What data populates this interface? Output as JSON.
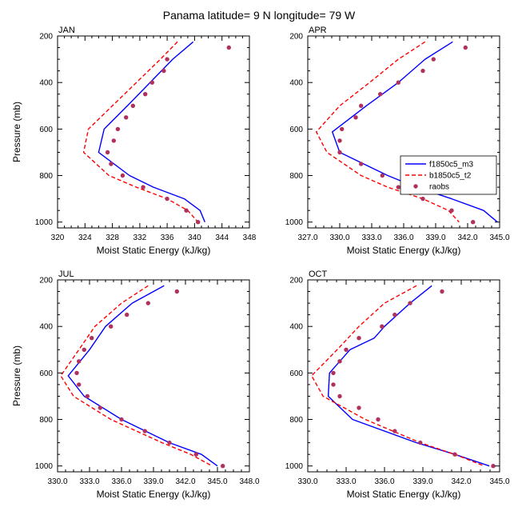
{
  "title": "Panama  latitude= 9 N longitude= 79 W",
  "colors": {
    "model": "#0000ff",
    "baseline": "#ff0000",
    "obs": "#b0305e"
  },
  "chart_data": [
    {
      "type": "line",
      "panel": "JAN",
      "xlabel": "Moist Static Energy (kJ/kg)",
      "ylabel": "Pressure (mb)",
      "xlim": [
        320,
        348
      ],
      "ylim": [
        200,
        1025
      ],
      "xticks": [
        320,
        324,
        328,
        332,
        336,
        340,
        344,
        348
      ],
      "xticklabels": [
        "320",
        "324",
        "328",
        "332",
        "336",
        "340",
        "344",
        "348"
      ],
      "yticks": [
        200,
        400,
        600,
        800,
        1000
      ],
      "yticklabels": [
        "200",
        "400",
        "600",
        "800",
        "1000"
      ],
      "series": [
        {
          "name": "f1850c5_m3",
          "style": "solid",
          "color": "#0000ff",
          "p": [
            225,
            300,
            400,
            500,
            600,
            700,
            800,
            850,
            900,
            950,
            1000
          ],
          "x": [
            339.8,
            336.8,
            333.5,
            330.2,
            326.8,
            326.0,
            330.5,
            334.0,
            338.5,
            340.8,
            341.5
          ]
        },
        {
          "name": "b1850c5_t2",
          "style": "dashed",
          "color": "#ff0000",
          "p": [
            225,
            300,
            400,
            500,
            600,
            700,
            800,
            850,
            900,
            950,
            1000
          ],
          "x": [
            337.5,
            335.0,
            331.5,
            328.0,
            324.5,
            323.8,
            327.5,
            331.5,
            336.0,
            339.0,
            340.5
          ]
        },
        {
          "name": "raobs",
          "style": "dots",
          "color": "#b0305e",
          "p": [
            250,
            300,
            350,
            400,
            450,
            500,
            550,
            600,
            650,
            700,
            750,
            800,
            850,
            900,
            950,
            1000
          ],
          "x": [
            345.0,
            336.0,
            335.5,
            333.8,
            332.8,
            331.0,
            330.0,
            328.8,
            328.2,
            327.3,
            327.8,
            329.5,
            332.5,
            336.0,
            338.8,
            340.5
          ]
        }
      ]
    },
    {
      "type": "line",
      "panel": "APR",
      "xlabel": "Moist Static Energy (kJ/kg)",
      "ylabel": "",
      "xlim": [
        327,
        345
      ],
      "ylim": [
        200,
        1025
      ],
      "xticks": [
        327,
        330,
        333,
        336,
        339,
        342,
        345
      ],
      "xticklabels": [
        "327.0",
        "330.0",
        "333.0",
        "336.0",
        "339.0",
        "342.0",
        "345.0"
      ],
      "yticks": [
        200,
        400,
        600,
        800,
        1000
      ],
      "yticklabels": [
        "200",
        "400",
        "600",
        "800",
        "1000"
      ],
      "legend": {
        "placement": "right",
        "entries": [
          "f1850c5_m3",
          "b1850c5_t2",
          "raobs"
        ]
      },
      "series": [
        {
          "name": "f1850c5_m3",
          "style": "solid",
          "color": "#0000ff",
          "p": [
            225,
            300,
            400,
            500,
            612,
            700,
            800,
            850,
            900,
            950,
            1000
          ],
          "x": [
            340.6,
            338.0,
            335.5,
            332.5,
            329.3,
            330.0,
            334.5,
            337.2,
            340.5,
            343.5,
            344.8
          ]
        },
        {
          "name": "b1850c5_t2",
          "style": "dashed",
          "color": "#ff0000",
          "p": [
            225,
            300,
            400,
            500,
            612,
            700,
            800,
            850,
            900,
            950,
            1000
          ],
          "x": [
            338.0,
            335.5,
            332.8,
            330.0,
            327.8,
            328.8,
            332.0,
            334.5,
            337.8,
            340.2,
            341.2
          ]
        },
        {
          "name": "raobs",
          "style": "dots",
          "color": "#b0305e",
          "p": [
            250,
            300,
            350,
            400,
            450,
            500,
            550,
            600,
            650,
            700,
            750,
            800,
            850,
            900,
            950,
            1000
          ],
          "x": [
            341.8,
            338.8,
            337.8,
            335.5,
            333.8,
            332.0,
            331.5,
            330.2,
            330.0,
            330.0,
            332.0,
            334.0,
            335.5,
            337.8,
            340.5,
            342.5
          ]
        }
      ]
    },
    {
      "type": "line",
      "panel": "JUL",
      "xlabel": "Moist Static Energy (kJ/kg)",
      "ylabel": "Pressure (mb)",
      "xlim": [
        330,
        348
      ],
      "ylim": [
        200,
        1025
      ],
      "xticks": [
        330,
        333,
        336,
        339,
        342,
        345,
        348
      ],
      "xticklabels": [
        "330.0",
        "333.0",
        "336.0",
        "339.0",
        "342.0",
        "345.0",
        "348.0"
      ],
      "yticks": [
        200,
        400,
        600,
        800,
        1000
      ],
      "yticklabels": [
        "200",
        "400",
        "600",
        "800",
        "1000"
      ],
      "series": [
        {
          "name": "f1850c5_m3",
          "style": "solid",
          "color": "#0000ff",
          "p": [
            225,
            300,
            400,
            500,
            612,
            700,
            800,
            900,
            950,
            1000
          ],
          "x": [
            340.0,
            337.0,
            334.5,
            333.0,
            331.0,
            332.5,
            336.0,
            340.5,
            343.5,
            345.0
          ]
        },
        {
          "name": "b1850c5_t2",
          "style": "dashed",
          "color": "#ff0000",
          "p": [
            225,
            300,
            400,
            500,
            612,
            700,
            800,
            900,
            950,
            1000
          ],
          "x": [
            338.5,
            336.0,
            333.5,
            332.0,
            330.3,
            331.5,
            335.0,
            339.8,
            342.5,
            344.5
          ]
        },
        {
          "name": "raobs",
          "style": "dots",
          "color": "#b0305e",
          "p": [
            250,
            300,
            350,
            400,
            450,
            500,
            550,
            600,
            650,
            700,
            750,
            800,
            850,
            900,
            950,
            1000
          ],
          "x": [
            341.2,
            338.5,
            336.5,
            335.0,
            333.2,
            332.5,
            332.0,
            331.8,
            332.0,
            332.8,
            334.0,
            336.0,
            338.2,
            340.5,
            343.0,
            345.5
          ]
        }
      ]
    },
    {
      "type": "line",
      "panel": "OCT",
      "xlabel": "Moist Static Energy (kJ/kg)",
      "ylabel": "",
      "xlim": [
        330,
        345
      ],
      "ylim": [
        200,
        1025
      ],
      "xticks": [
        330,
        333,
        336,
        339,
        342,
        345
      ],
      "xticklabels": [
        "330.0",
        "333.0",
        "336.0",
        "339.0",
        "342.0",
        "345.0"
      ],
      "yticks": [
        200,
        400,
        600,
        800,
        1000
      ],
      "yticklabels": [
        "200",
        "400",
        "600",
        "800",
        "1000"
      ],
      "series": [
        {
          "name": "f1850c5_m3",
          "style": "solid",
          "color": "#0000ff",
          "p": [
            225,
            300,
            400,
            450,
            500,
            600,
            700,
            800,
            900,
            950,
            1000
          ],
          "x": [
            339.7,
            338.0,
            336.0,
            335.2,
            333.3,
            331.7,
            331.6,
            333.5,
            338.5,
            341.5,
            344.2
          ]
        },
        {
          "name": "b1850c5_t2",
          "style": "dashed",
          "color": "#ff0000",
          "p": [
            225,
            300,
            400,
            500,
            612,
            700,
            800,
            900,
            950,
            1000
          ],
          "x": [
            338.5,
            336.0,
            334.0,
            332.3,
            330.3,
            331.2,
            334.5,
            338.8,
            341.5,
            343.8
          ]
        },
        {
          "name": "raobs",
          "style": "dots",
          "color": "#b0305e",
          "p": [
            250,
            300,
            350,
            400,
            450,
            500,
            550,
            600,
            650,
            700,
            750,
            800,
            850,
            900,
            950,
            1000
          ],
          "x": [
            340.5,
            338.0,
            336.8,
            335.8,
            334.0,
            333.0,
            332.5,
            332.0,
            332.0,
            332.5,
            334.0,
            335.5,
            336.8,
            338.8,
            341.5,
            344.5
          ]
        }
      ]
    }
  ]
}
